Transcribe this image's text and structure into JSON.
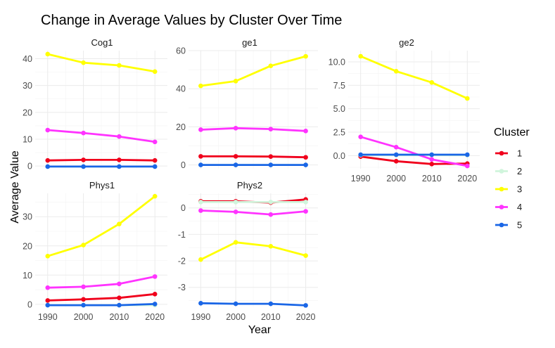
{
  "chart_data": {
    "type": "line",
    "title": "Change in Average Values by Cluster Over Time",
    "xlabel": "Year",
    "ylabel": "Average Value",
    "x": [
      1990,
      2000,
      2010,
      2020
    ],
    "x_ticks": [
      "1990",
      "2000",
      "2010",
      "2020"
    ],
    "legend": {
      "title": "Cluster",
      "position": "right",
      "entries": [
        {
          "name": "1",
          "color": "#f0001c"
        },
        {
          "name": "2",
          "color": "#d0f5dc"
        },
        {
          "name": "3",
          "color": "#ffff00"
        },
        {
          "name": "4",
          "color": "#ff33ff"
        },
        {
          "name": "5",
          "color": "#1a66e6"
        }
      ]
    },
    "grid": true,
    "facets": [
      {
        "name": "Cog1",
        "ylim": [
          -1,
          43
        ],
        "yticks": [
          0,
          10,
          20,
          30,
          40
        ],
        "series": [
          {
            "name": "1",
            "values": [
              2.1,
              2.3,
              2.3,
              2.1
            ]
          },
          {
            "name": "2",
            "values": [
              -0.2,
              -0.2,
              -0.2,
              -0.2
            ]
          },
          {
            "name": "3",
            "values": [
              41.7,
              38.5,
              37.5,
              35.2
            ]
          },
          {
            "name": "4",
            "values": [
              13.4,
              12.3,
              11.0,
              9.0
            ]
          },
          {
            "name": "5",
            "values": [
              -0.2,
              -0.2,
              -0.2,
              -0.2
            ]
          }
        ]
      },
      {
        "name": "ge1",
        "ylim": [
          -2,
          60
        ],
        "yticks": [
          0,
          20,
          40,
          60
        ],
        "series": [
          {
            "name": "1",
            "values": [
              4.5,
              4.5,
              4.4,
              4.0
            ]
          },
          {
            "name": "2",
            "values": [
              0.0,
              0.0,
              0.0,
              0.0
            ]
          },
          {
            "name": "3",
            "values": [
              41.5,
              44.0,
              52.0,
              57.0
            ]
          },
          {
            "name": "4",
            "values": [
              18.5,
              19.3,
              18.8,
              17.8
            ]
          },
          {
            "name": "5",
            "values": [
              0.0,
              0.0,
              0.0,
              0.0
            ]
          }
        ]
      },
      {
        "name": "ge2",
        "ylim": [
          -1.4,
          11.2
        ],
        "yticks": [
          0.0,
          2.5,
          5.0,
          7.5,
          10.0
        ],
        "ytick_labels": [
          "0.0",
          "2.5",
          "5.0",
          "7.5",
          "10.0"
        ],
        "series": [
          {
            "name": "1",
            "values": [
              -0.1,
              -0.6,
              -0.9,
              -0.85
            ]
          },
          {
            "name": "2",
            "values": [
              0.05,
              0.05,
              0.05,
              0.05
            ]
          },
          {
            "name": "3",
            "values": [
              10.6,
              9.0,
              7.8,
              6.1
            ]
          },
          {
            "name": "4",
            "values": [
              2.0,
              0.9,
              -0.4,
              -1.1
            ]
          },
          {
            "name": "5",
            "values": [
              0.1,
              0.1,
              0.1,
              0.1
            ]
          }
        ]
      },
      {
        "name": "Phys1",
        "ylim": [
          -1,
          38
        ],
        "yticks": [
          0,
          10,
          20,
          30
        ],
        "series": [
          {
            "name": "1",
            "values": [
              1.3,
              1.7,
              2.2,
              3.5
            ]
          },
          {
            "name": "2",
            "values": [
              -0.3,
              -0.3,
              -0.3,
              -0.3
            ]
          },
          {
            "name": "3",
            "values": [
              16.5,
              20.3,
              27.5,
              37.0
            ]
          },
          {
            "name": "4",
            "values": [
              5.7,
              6.0,
              7.0,
              9.5
            ]
          },
          {
            "name": "5",
            "values": [
              -0.3,
              -0.3,
              -0.3,
              0.1
            ]
          }
        ]
      },
      {
        "name": "Phys2",
        "ylim": [
          -3.75,
          0.55
        ],
        "yticks": [
          -3,
          -2,
          -1,
          0
        ],
        "series": [
          {
            "name": "1",
            "values": [
              0.25,
              0.25,
              0.2,
              0.32
            ]
          },
          {
            "name": "2",
            "values": [
              0.22,
              0.22,
              0.22,
              0.22
            ]
          },
          {
            "name": "3",
            "values": [
              -1.95,
              -1.3,
              -1.45,
              -1.8
            ]
          },
          {
            "name": "4",
            "values": [
              -0.1,
              -0.15,
              -0.25,
              -0.13
            ]
          },
          {
            "name": "5",
            "values": [
              -3.6,
              -3.62,
              -3.62,
              -3.68
            ]
          }
        ]
      }
    ]
  }
}
